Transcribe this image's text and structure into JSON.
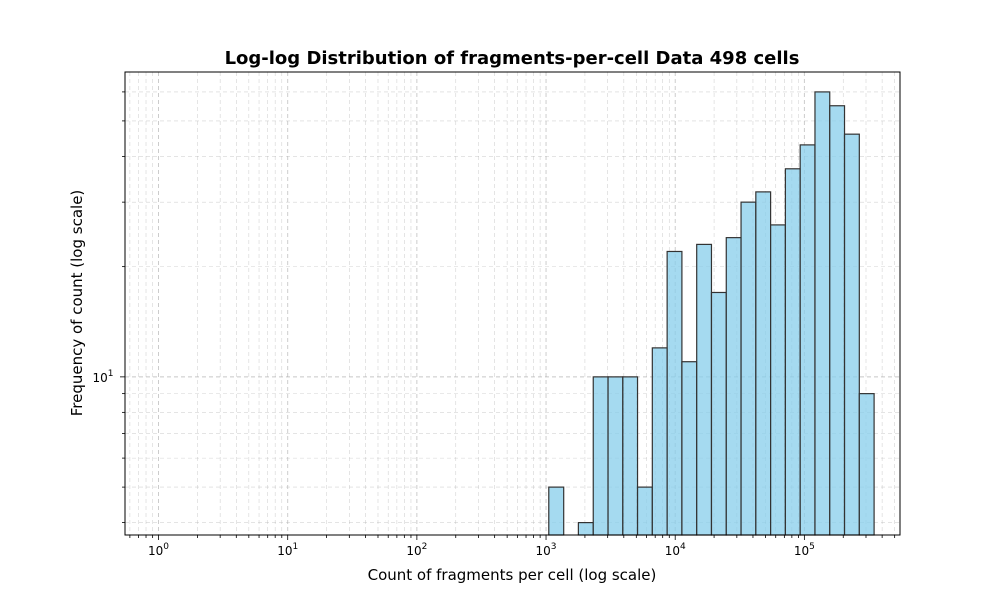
{
  "chart_data": {
    "type": "bar",
    "title": "Log-log Distribution of fragments-per-cell Data 498 cells",
    "xlabel": "Count of fragments per cell (log scale)",
    "ylabel": "Frequency of count (log scale)",
    "x_scale": "log",
    "y_scale": "log",
    "xlim": [
      0.55,
      550000
    ],
    "ylim": [
      3.7,
      68
    ],
    "grid": true,
    "bar_color": "#87ceeb",
    "bar_edge_color": "#333333",
    "x_ticks": [
      {
        "value": 1,
        "base": "10",
        "exp": "0"
      },
      {
        "value": 10,
        "base": "10",
        "exp": "1"
      },
      {
        "value": 100,
        "base": "10",
        "exp": "2"
      },
      {
        "value": 1000,
        "base": "10",
        "exp": "3"
      },
      {
        "value": 10000,
        "base": "10",
        "exp": "4"
      },
      {
        "value": 100000,
        "base": "10",
        "exp": "5"
      }
    ],
    "y_ticks": [
      {
        "value": 10,
        "base": "10",
        "exp": "1"
      }
    ],
    "bins": [
      {
        "left": 1050,
        "right": 1370,
        "count": 5
      },
      {
        "left": 1370,
        "right": 1780,
        "count": 0
      },
      {
        "left": 1780,
        "right": 2320,
        "count": 4
      },
      {
        "left": 2320,
        "right": 3020,
        "count": 10
      },
      {
        "left": 3020,
        "right": 3930,
        "count": 10
      },
      {
        "left": 3930,
        "right": 5110,
        "count": 10
      },
      {
        "left": 5110,
        "right": 6650,
        "count": 5
      },
      {
        "left": 6650,
        "right": 8660,
        "count": 12
      },
      {
        "left": 8660,
        "right": 11270,
        "count": 22
      },
      {
        "left": 11270,
        "right": 14670,
        "count": 11
      },
      {
        "left": 14670,
        "right": 19090,
        "count": 23
      },
      {
        "left": 19090,
        "right": 24850,
        "count": 17
      },
      {
        "left": 24850,
        "right": 32340,
        "count": 24
      },
      {
        "left": 32340,
        "right": 42090,
        "count": 30
      },
      {
        "left": 42090,
        "right": 54780,
        "count": 32
      },
      {
        "left": 54780,
        "right": 71300,
        "count": 26
      },
      {
        "left": 71300,
        "right": 92800,
        "count": 37
      },
      {
        "left": 92800,
        "right": 120800,
        "count": 43
      },
      {
        "left": 120800,
        "right": 157200,
        "count": 60
      },
      {
        "left": 157200,
        "right": 204600,
        "count": 55
      },
      {
        "left": 204600,
        "right": 266300,
        "count": 46
      },
      {
        "left": 266300,
        "right": 346600,
        "count": 9
      }
    ]
  }
}
